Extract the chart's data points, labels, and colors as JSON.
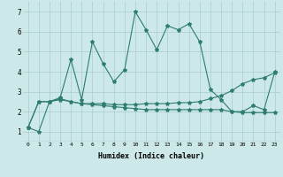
{
  "xlabel": "Humidex (Indice chaleur)",
  "x": [
    0,
    1,
    2,
    3,
    4,
    5,
    6,
    7,
    8,
    9,
    10,
    11,
    12,
    13,
    14,
    15,
    16,
    17,
    18,
    19,
    20,
    21,
    22,
    23
  ],
  "line1": [
    1.2,
    1.0,
    2.5,
    2.7,
    4.6,
    2.6,
    5.5,
    4.4,
    3.5,
    4.1,
    7.0,
    6.1,
    5.1,
    6.3,
    6.1,
    6.4,
    5.5,
    3.1,
    2.6,
    2.0,
    2.0,
    2.3,
    2.1,
    4.0
  ],
  "line2": [
    1.2,
    2.5,
    2.5,
    2.6,
    2.5,
    2.4,
    2.4,
    2.4,
    2.35,
    2.35,
    2.35,
    2.4,
    2.4,
    2.4,
    2.45,
    2.45,
    2.5,
    2.65,
    2.8,
    3.05,
    3.4,
    3.6,
    3.7,
    3.95
  ],
  "line3": [
    1.2,
    2.5,
    2.5,
    2.65,
    2.5,
    2.4,
    2.35,
    2.3,
    2.25,
    2.2,
    2.15,
    2.1,
    2.1,
    2.1,
    2.1,
    2.1,
    2.1,
    2.1,
    2.1,
    2.0,
    1.95,
    1.95,
    1.95,
    1.95
  ],
  "color": "#2e7d6e",
  "bg_color": "#cce8e8",
  "grid_color": "#aacccc",
  "ylim": [
    0.5,
    7.5
  ],
  "xlim": [
    -0.5,
    23.5
  ],
  "yticks": [
    1,
    2,
    3,
    4,
    5,
    6,
    7
  ],
  "xticks": [
    0,
    1,
    2,
    3,
    4,
    5,
    6,
    7,
    8,
    9,
    10,
    11,
    12,
    13,
    14,
    15,
    16,
    17,
    18,
    19,
    20,
    21,
    22,
    23
  ]
}
